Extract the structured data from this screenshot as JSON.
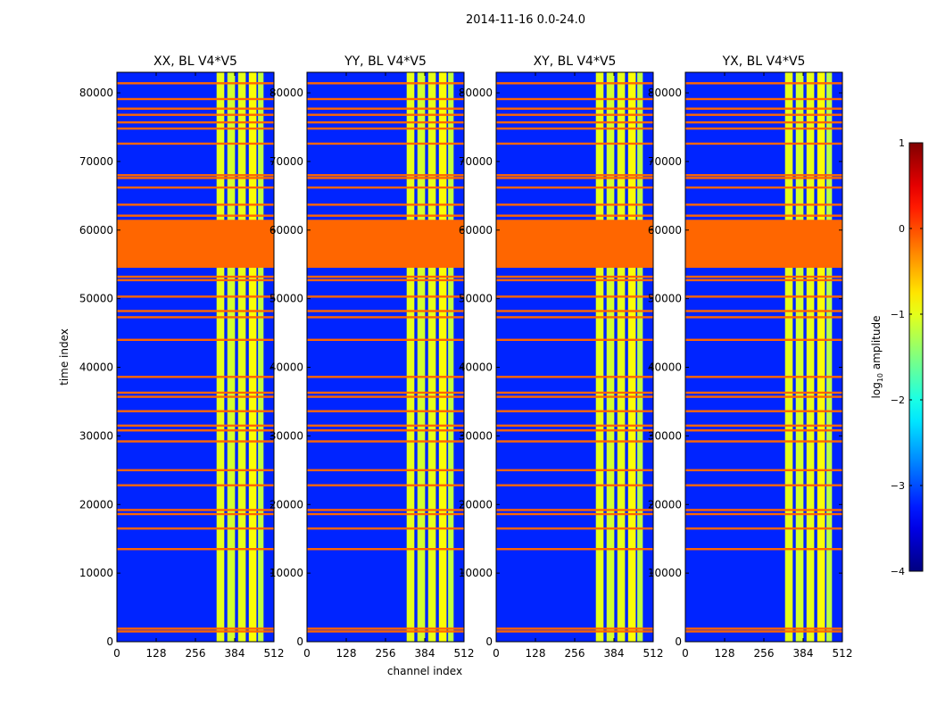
{
  "figure_title": "2014-11-16 0.0-24.0",
  "chart_data": {
    "type": "heatmap",
    "suptitle": "2014-11-16 0.0-24.0",
    "xlabel": "channel index",
    "ylabel": "time index",
    "xlim": [
      0,
      512
    ],
    "ylim": [
      0,
      83000
    ],
    "xticks": [
      0,
      128,
      256,
      384,
      512
    ],
    "xtick_labels": [
      "0",
      "128",
      "256",
      "384",
      "512"
    ],
    "yticks": [
      0,
      10000,
      20000,
      30000,
      40000,
      50000,
      60000,
      70000,
      80000
    ],
    "ytick_labels": [
      "0",
      "10000",
      "20000",
      "30000",
      "40000",
      "50000",
      "60000",
      "70000",
      "80000"
    ],
    "colormap": "jet",
    "colorbar": {
      "label": "log10 amplitude",
      "label_base": "log",
      "label_sub": "10",
      "label_rest": " amplitude",
      "min": -4,
      "max": 1,
      "ticks": [
        1,
        0,
        -1,
        -2,
        -3,
        -4
      ],
      "tick_labels": [
        "1",
        "0",
        "−1",
        "−2",
        "−3",
        "−4"
      ]
    },
    "panels": [
      {
        "title": "XX, BL V4*V5",
        "polarization": "XX"
      },
      {
        "title": "YY, BL V4*V5",
        "polarization": "YY"
      },
      {
        "title": "XY, BL V4*V5",
        "polarization": "XY"
      },
      {
        "title": "YX, BL V4*V5",
        "polarization": "YX"
      }
    ],
    "background_level": -3.2,
    "flag_color": "#ff6600",
    "flagged_time_ranges": [
      [
        54500,
        61500
      ]
    ],
    "flagged_time_lines": [
      1500,
      1900,
      13500,
      16500,
      18600,
      19200,
      22800,
      25000,
      29200,
      30800,
      31500,
      33600,
      35700,
      36300,
      38600,
      44000,
      47300,
      48200,
      50300,
      52700,
      53200,
      62100,
      63700,
      66200,
      67600,
      68000,
      72600,
      74800,
      75700,
      76800,
      77700,
      79100,
      81400
    ],
    "bright_channel_bands": [
      {
        "start": 325,
        "end": 350,
        "level": -1.0
      },
      {
        "start": 360,
        "end": 385,
        "level": -1.1
      },
      {
        "start": 395,
        "end": 420,
        "level": -1.0
      },
      {
        "start": 430,
        "end": 455,
        "level": -0.9
      },
      {
        "start": 460,
        "end": 478,
        "level": -1.2
      }
    ]
  }
}
